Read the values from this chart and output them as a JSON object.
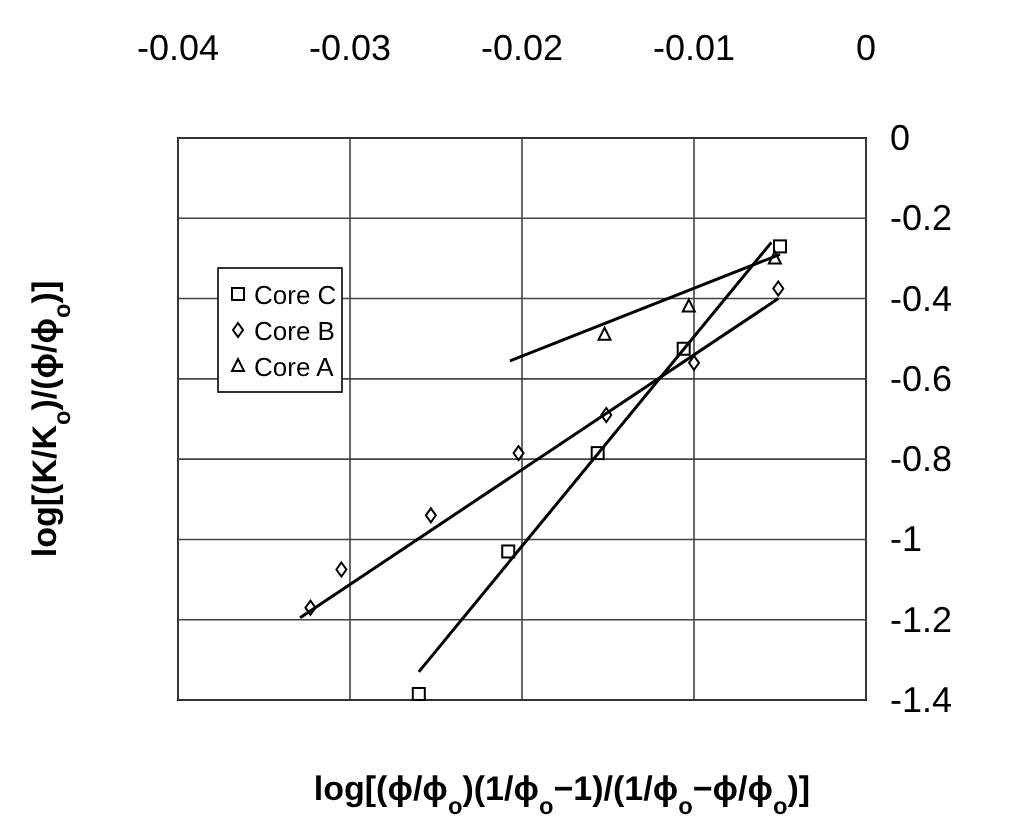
{
  "chart_data": {
    "type": "scatter",
    "xlabel": "log[(ϕ/ϕ$_{o}$)(1/ϕ$_{o}$−1)/(1/ϕ$_{o}$−ϕ/ϕ$_{o}$)]",
    "ylabel": "log[(K/K$_{o}$)/(ϕ/ϕ$_{o}$)]",
    "xlim": [
      -0.04,
      0
    ],
    "xticks": [
      -0.04,
      -0.03,
      -0.02,
      -0.01,
      0
    ],
    "ylim": [
      -1.4,
      0
    ],
    "yticks": [
      0,
      -0.2,
      -0.4,
      -0.6,
      -0.8,
      -1,
      -1.2,
      -1.4
    ],
    "grid": true,
    "legend": "top left",
    "series": [
      {
        "name": "Core C",
        "color": "#000000",
        "marker": "square",
        "x": [
          -0.026,
          -0.0208,
          -0.0156,
          -0.0106,
          -0.005
        ],
        "values": [
          -1.385,
          -1.03,
          -0.785,
          -0.525,
          -0.27
        ]
      },
      {
        "name": "Core B",
        "color": "#000000",
        "marker": "diamond",
        "x": [
          -0.0323,
          -0.0305,
          -0.0253,
          -0.0202,
          -0.0151,
          -0.01,
          -0.0051
        ],
        "values": [
          -1.17,
          -1.075,
          -0.94,
          -0.785,
          -0.69,
          -0.56,
          -0.375
        ]
      },
      {
        "name": "Core A",
        "color": "#000000",
        "marker": "triangle",
        "x": [
          -0.0152,
          -0.0103,
          -0.0053
        ],
        "values": [
          -0.49,
          -0.42,
          -0.3
        ]
      },
      {
        "type": "line",
        "color": "#000000",
        "x": [
          -0.026,
          -0.0055
        ],
        "values": [
          -1.33,
          -0.26
        ]
      },
      {
        "type": "line",
        "color": "#000000",
        "x": [
          -0.0329,
          -0.0051
        ],
        "values": [
          -1.195,
          -0.4
        ]
      },
      {
        "type": "line",
        "color": "#000000",
        "x": [
          -0.0207,
          -0.005
        ],
        "values": [
          -0.555,
          -0.29
        ]
      }
    ]
  }
}
